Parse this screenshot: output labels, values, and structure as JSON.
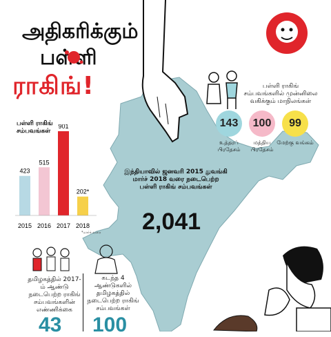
{
  "header": {
    "title_line1": "அதிகரிக்கும்",
    "title_line2": "பள்ளி",
    "title_line3": "ராகிங்!"
  },
  "colors": {
    "accent": "#e0252b",
    "map": "#a9cdd2",
    "bar_2015": "#b7d9e4",
    "bar_2016": "#f3c6d3",
    "bar_2017": "#e0252b",
    "bar_2018": "#f6d04a",
    "circle_1": "#9fd6de",
    "circle_2": "#f5b9c8",
    "circle_3": "#f7e04a"
  },
  "chart_data": {
    "type": "bar",
    "ylabel": "பள்ளி ராகிங் சம்பவங்கள்",
    "categories": [
      "2015",
      "2016",
      "2017",
      "2018"
    ],
    "values": [
      423,
      515,
      901,
      202
    ],
    "value_labels": [
      "423",
      "515",
      "901",
      "202*"
    ],
    "footnote": "*மார்ச் வரை"
  },
  "total": {
    "text": "இந்தியாவில் ஜனவரி 2015 துவங்கி மார்ச் 2018 வரை நடைபெற்ற பள்ளி ராகிங் சம்பவங்கள்",
    "value": "2,041"
  },
  "top_states": {
    "heading": "பள்ளி ராகிங் சம்பவங்களில் முன்னிலை வகிக்கும் மாநிலங்கள்",
    "items": [
      {
        "value": "143",
        "label": "உத்தரப் பிரதேசம்"
      },
      {
        "value": "100",
        "label": "மத்திய பிரதேசம்"
      },
      {
        "value": "99",
        "label": "மேற்கு வங்கம்"
      }
    ]
  },
  "tn_2017": {
    "text": "தமிழகத்தில் 2017-ம் ஆண்டு நடைபெற்ற ராகிங் சம்பவங்களின் எண்ணிக்கை",
    "value": "43"
  },
  "tn_4years": {
    "text": "கடந்த 4 ஆண்டுகளில் தமிழகத்தில் நடைபெற்ற ராகிங் சம்பவங்கள்",
    "value": "100"
  }
}
